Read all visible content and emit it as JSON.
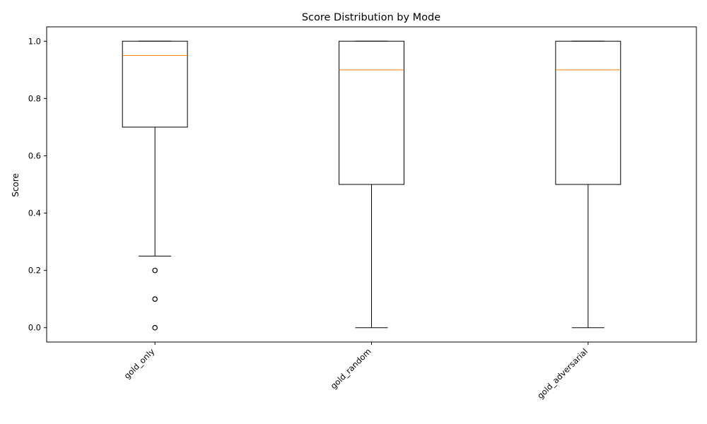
{
  "chart_data": {
    "type": "box",
    "title": "Score Distribution by Mode",
    "xlabel": "",
    "ylabel": "Score",
    "ylim": [
      -0.05,
      1.05
    ],
    "yticks": [
      0.0,
      0.2,
      0.4,
      0.6,
      0.8,
      1.0
    ],
    "ytick_labels": [
      "0.0",
      "0.2",
      "0.4",
      "0.6",
      "0.8",
      "1.0"
    ],
    "grid": false,
    "x_tick_rotation": 45,
    "categories": [
      "gold_only",
      "gold_random",
      "gold_adversarial"
    ],
    "boxes": [
      {
        "name": "gold_only",
        "whisker_low": 0.25,
        "q1": 0.7,
        "median": 0.95,
        "q3": 1.0,
        "whisker_high": 1.0,
        "outliers": [
          0.2,
          0.1,
          0.0
        ]
      },
      {
        "name": "gold_random",
        "whisker_low": 0.0,
        "q1": 0.5,
        "median": 0.9,
        "q3": 1.0,
        "whisker_high": 1.0,
        "outliers": []
      },
      {
        "name": "gold_adversarial",
        "whisker_low": 0.0,
        "q1": 0.5,
        "median": 0.9,
        "q3": 1.0,
        "whisker_high": 1.0,
        "outliers": []
      }
    ],
    "colors": {
      "box": "#000000",
      "median": "#ff7f0e",
      "outlier": "#000000",
      "axes": "#000000"
    }
  }
}
